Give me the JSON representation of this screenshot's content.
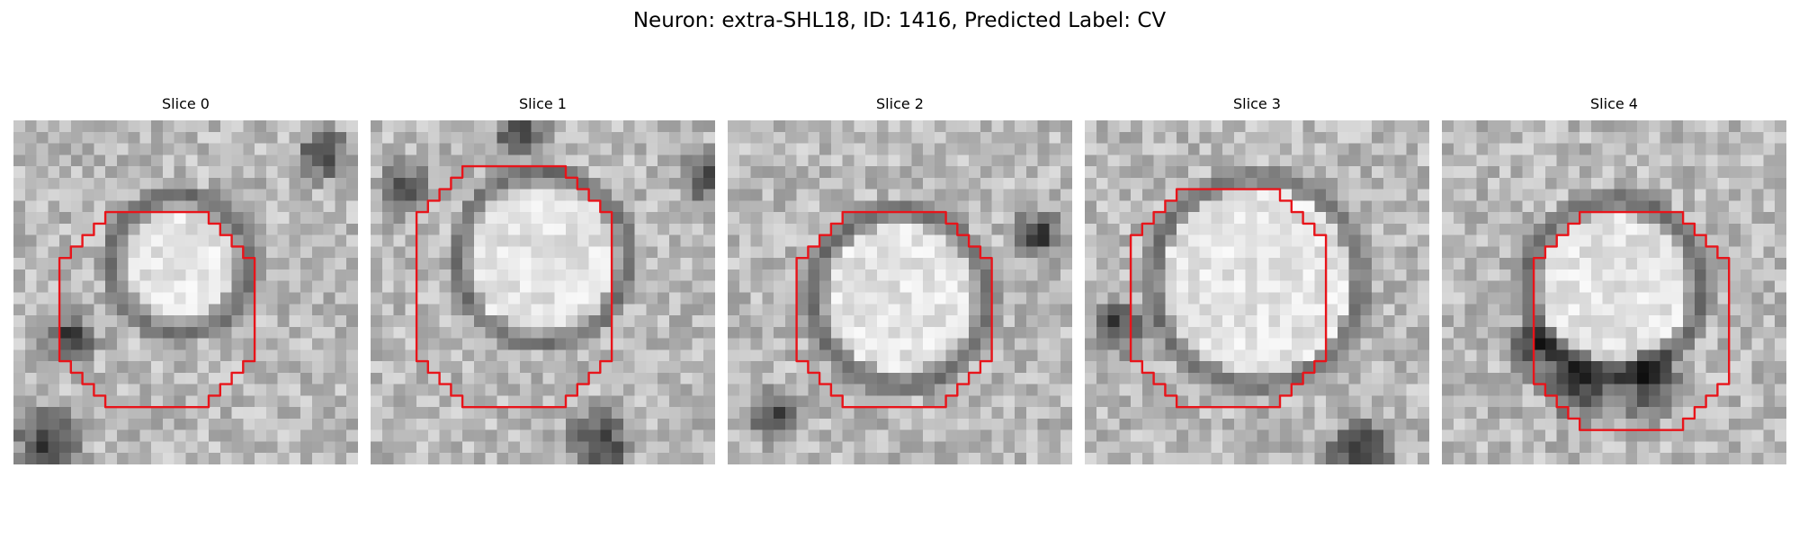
{
  "figure": {
    "title": "Neuron: extra-SHL18, ID: 1416, Predicted Label: CV"
  },
  "contour_color": "#e8141a",
  "panels": [
    {
      "title": "Slice 0",
      "image": "grayscale-microscopy-slice"
    },
    {
      "title": "Slice 1",
      "image": "grayscale-microscopy-slice"
    },
    {
      "title": "Slice 2",
      "image": "grayscale-microscopy-slice"
    },
    {
      "title": "Slice 3",
      "image": "grayscale-microscopy-slice"
    },
    {
      "title": "Slice 4",
      "image": "grayscale-microscopy-slice"
    }
  ]
}
